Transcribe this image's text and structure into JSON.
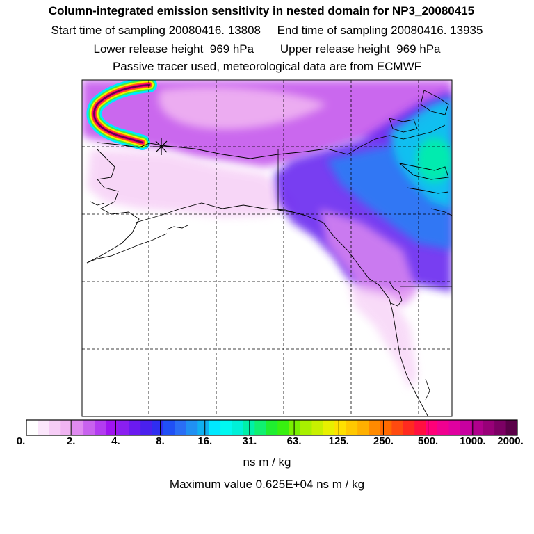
{
  "header": {
    "title": "Column-integrated emission sensitivity in nested domain for NP3_20080415",
    "start_label": "Start time of sampling 20080416. 13808",
    "end_label": "End time of sampling 20080416. 13935",
    "lower_release": "Lower release height  969 hPa",
    "upper_release": "Upper release height  969 hPa",
    "note": "Passive tracer used, meteorological data are from ECMWF"
  },
  "colorbar": {
    "tick_labels": [
      "0.",
      "2.",
      "4.",
      "8.",
      "16.",
      "31.",
      "63.",
      "125.",
      "250.",
      "500.",
      "1000.",
      "2000."
    ],
    "unit": "ns m / kg",
    "max_value_text": "Maximum value  0.625E+04 ns m / kg",
    "colors": [
      "#ffffff",
      "#fbe6fb",
      "#f6cdf6",
      "#f0b4f2",
      "#df8af0",
      "#c862ee",
      "#b33cf0",
      "#9f14f0",
      "#8a1ff0",
      "#6b1af0",
      "#4a20ee",
      "#2f2ef0",
      "#2050f5",
      "#2a6ef5",
      "#2090f2",
      "#10b0f0",
      "#00e8ff",
      "#00f8f0",
      "#00f0d8",
      "#00f0a8",
      "#10f070",
      "#20ee30",
      "#38f010",
      "#78f000",
      "#a8f000",
      "#c8f000",
      "#e8f000",
      "#ffe000",
      "#ffc800",
      "#ffb000",
      "#ff8a00",
      "#ff6a00",
      "#ff4a10",
      "#ff2a20",
      "#ff1040",
      "#ff0078",
      "#f00090",
      "#e000a0",
      "#c800a0",
      "#b0008c",
      "#980078",
      "#7c0064",
      "#5a0048"
    ]
  },
  "map": {
    "receptor_marker": "star-cross",
    "gridlines": "dashed"
  }
}
